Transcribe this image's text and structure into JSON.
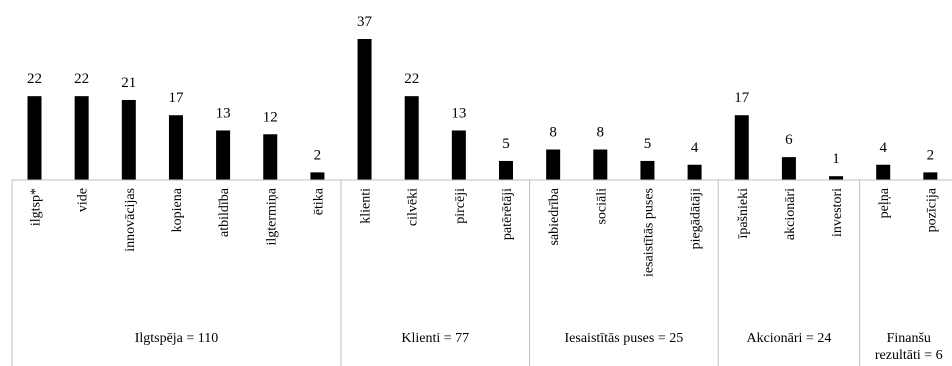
{
  "chart_data": {
    "type": "bar",
    "title": "",
    "xlabel": "",
    "ylabel": "",
    "ylim": [
      0,
      40
    ],
    "grid": false,
    "legend": "none",
    "bar_color": "#000000",
    "separator_color": "#bfbfbf",
    "data_labels": true,
    "categories": [
      "ilgtsp*",
      "vide",
      "innovācijas",
      "kopiena",
      "atbildība",
      "ilgtermiņa",
      "ētika",
      "klienti",
      "cilvēki",
      "pircēji",
      "patērētāji",
      "sabiedrība",
      "sociāli",
      "iesaistītās puses",
      "piegādātāji",
      "īpašnieki",
      "akcionāri",
      "investori",
      "peļņa",
      "pozīcija"
    ],
    "values": [
      22,
      22,
      21,
      17,
      13,
      12,
      2,
      37,
      22,
      13,
      5,
      8,
      8,
      5,
      4,
      17,
      6,
      1,
      4,
      2
    ],
    "groups": [
      {
        "label_lines": [
          "Ilgtspēja = 110"
        ],
        "count": 7
      },
      {
        "label_lines": [
          "Klienti = 77"
        ],
        "count": 4
      },
      {
        "label_lines": [
          "Iesaistītās puses = 25"
        ],
        "count": 4
      },
      {
        "label_lines": [
          "Akcionāri = 24"
        ],
        "count": 3
      },
      {
        "label_lines": [
          "Finanšu",
          "rezultāti = 6"
        ],
        "count": 2
      }
    ]
  }
}
